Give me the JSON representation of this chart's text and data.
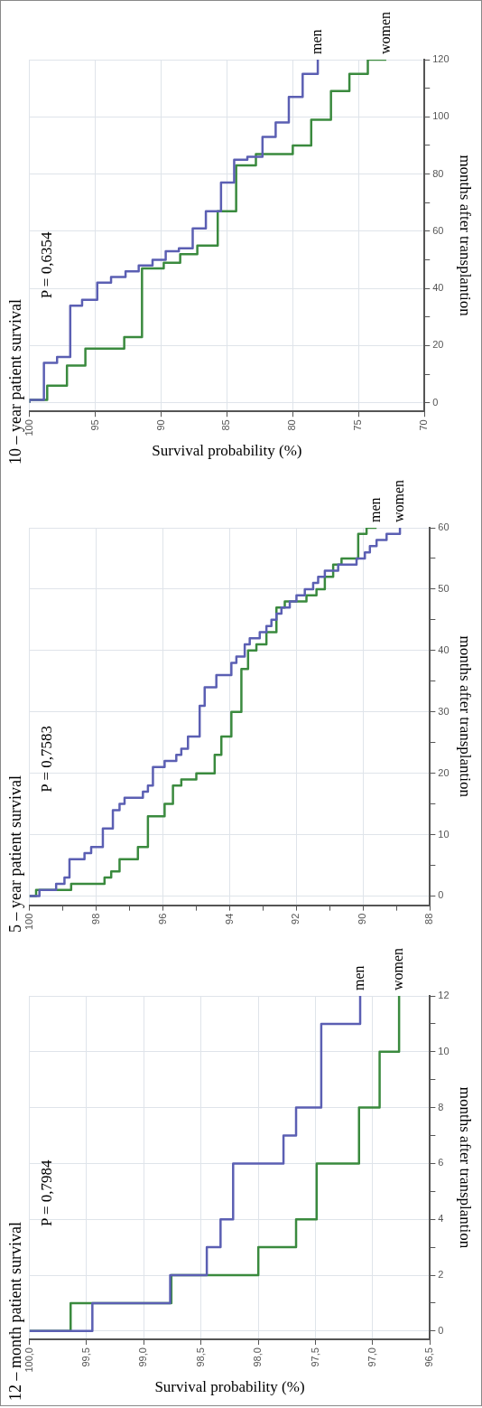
{
  "chart_data": [
    {
      "type": "step",
      "title": "12 – month patient survival",
      "ylabel": "months after transplantion",
      "xlabel": "Survival probability (%)",
      "annotations": [
        "P = 0,7984"
      ],
      "ylim": [
        -0.3,
        12
      ],
      "xlim": [
        100,
        96.5
      ],
      "yticks": [
        0,
        {
          "value": 1,
          "label": null
        },
        2,
        {
          "value": 3,
          "label": null
        },
        4,
        {
          "value": 5,
          "label": null
        },
        6,
        {
          "value": 7,
          "label": null
        },
        8,
        {
          "value": 9,
          "label": null
        },
        10,
        {
          "value": 11,
          "label": null
        },
        12
      ],
      "xticks": [
        {
          "value": 100,
          "label": "100,0"
        },
        {
          "value": 99.5,
          "label": "99,5"
        },
        {
          "value": 99,
          "label": "99,0"
        },
        {
          "value": 98.5,
          "label": "98,5"
        },
        {
          "value": 98,
          "label": "98,0"
        },
        {
          "value": 97.5,
          "label": "97,5"
        },
        {
          "value": 97,
          "label": "97,0"
        },
        {
          "value": 96.5,
          "label": "96,5"
        }
      ],
      "grid": true,
      "series": [
        {
          "name": "men",
          "color": "#5b5fb3",
          "values": [
            0,
            0,
            1,
            2,
            3,
            4,
            6,
            7,
            8,
            11,
            12
          ],
          "x": [
            100,
            99.45,
            98.77,
            98.45,
            98.33,
            98.22,
            97.78,
            97.67,
            97.45,
            97.11,
            97.11
          ]
        },
        {
          "name": "women",
          "color": "#3a8a3e",
          "values": [
            0,
            0,
            1,
            2,
            3,
            4,
            6,
            8,
            10,
            12
          ],
          "x": [
            100,
            99.64,
            98.76,
            98.0,
            97.67,
            97.49,
            97.12,
            96.94,
            96.77,
            96.77
          ]
        }
      ]
    },
    {
      "type": "step",
      "title": "5 – year patient survival",
      "ylabel": "months after transplantion",
      "annotations": [
        "P = 0,7583"
      ],
      "ylim": [
        -1.5,
        60
      ],
      "xlim": [
        100,
        88
      ],
      "yticks": [
        0,
        {
          "value": 5,
          "label": null
        },
        10,
        {
          "value": 15,
          "label": null
        },
        20,
        {
          "value": 25,
          "label": null
        },
        30,
        {
          "value": 35,
          "label": null
        },
        40,
        {
          "value": 45,
          "label": null
        },
        50,
        {
          "value": 55,
          "label": null
        },
        60
      ],
      "xticks": [
        100,
        {
          "value": 99,
          "label": null
        },
        98,
        {
          "value": 97,
          "label": null
        },
        96,
        {
          "value": 95,
          "label": null
        },
        94,
        {
          "value": 93,
          "label": null
        },
        92,
        {
          "value": 91,
          "label": null
        },
        90,
        {
          "value": 89,
          "label": null
        },
        88
      ],
      "grid": true,
      "series": [
        {
          "name": "women",
          "color": "#5b5fb3",
          "values": [
            0,
            0,
            1,
            2,
            3,
            6,
            7,
            8,
            11,
            14,
            15,
            16,
            17,
            18,
            21,
            22,
            23,
            24,
            26,
            31,
            34,
            36,
            38,
            39,
            41,
            42,
            43,
            44,
            45,
            46,
            47,
            48,
            49,
            50,
            51,
            52,
            53,
            54,
            55,
            56,
            57,
            58,
            59,
            60
          ],
          "x": [
            100,
            99.7,
            99.2,
            98.95,
            98.8,
            98.35,
            98.15,
            97.8,
            97.5,
            97.3,
            97.15,
            96.6,
            96.45,
            96.3,
            95.95,
            95.6,
            95.45,
            95.25,
            94.9,
            94.75,
            94.4,
            93.95,
            93.8,
            93.55,
            93.4,
            93.1,
            92.9,
            92.75,
            92.6,
            92.45,
            92.2,
            92.0,
            91.75,
            91.5,
            91.35,
            91.15,
            90.75,
            90.2,
            89.95,
            89.8,
            89.6,
            89.3,
            88.9,
            88.9
          ]
        },
        {
          "name": "men",
          "color": "#3a8a3e",
          "values": [
            0,
            0,
            1,
            2,
            3,
            4,
            6,
            8,
            13,
            15,
            18,
            19,
            20,
            23,
            26,
            30,
            37,
            40,
            41,
            43,
            47,
            48,
            49,
            50,
            52,
            54,
            55,
            59,
            60,
            60
          ],
          "x": [
            100,
            99.8,
            98.75,
            97.75,
            97.55,
            97.3,
            96.75,
            96.45,
            95.95,
            95.7,
            95.45,
            95.0,
            94.45,
            94.25,
            93.95,
            93.65,
            93.45,
            93.2,
            92.9,
            92.6,
            92.35,
            91.7,
            91.4,
            91.15,
            90.9,
            90.65,
            90.15,
            89.9,
            89.9,
            89.6
          ]
        }
      ]
    },
    {
      "type": "step",
      "title": "10 – year patient survival",
      "ylabel": "months after transplantion",
      "xlabel": "Survival probability (%)",
      "annotations": [
        "P = 0,6354"
      ],
      "ylim": [
        -3,
        120
      ],
      "xlim": [
        100,
        70
      ],
      "yticks": [
        0,
        {
          "value": 10,
          "label": null
        },
        20,
        {
          "value": 30,
          "label": null
        },
        40,
        {
          "value": 50,
          "label": null
        },
        60,
        {
          "value": 70,
          "label": null
        },
        80,
        {
          "value": 90,
          "label": null
        },
        100,
        {
          "value": 110,
          "label": null
        },
        120
      ],
      "xticks": [
        100,
        95,
        90,
        85,
        80,
        75,
        70
      ],
      "grid": true,
      "series": [
        {
          "name": "men",
          "color": "#5b5fb3",
          "values": [
            0,
            1,
            14,
            16,
            34,
            36,
            42,
            44,
            46,
            48,
            50,
            53,
            54,
            61,
            67,
            77,
            85,
            86,
            93,
            98,
            107,
            115,
            120
          ],
          "x": [
            100,
            98.9,
            97.9,
            96.9,
            96.0,
            94.85,
            93.8,
            92.7,
            91.7,
            90.65,
            89.65,
            88.65,
            87.6,
            86.6,
            85.45,
            84.45,
            83.45,
            82.3,
            81.3,
            80.3,
            79.25,
            78.1,
            78.1
          ]
        },
        {
          "name": "women",
          "color": "#3a8a3e",
          "values": [
            0,
            1,
            6,
            13,
            19,
            23,
            47,
            49,
            52,
            55,
            67,
            83,
            87,
            90,
            99,
            109,
            115,
            120
          ],
          "x": [
            100,
            98.65,
            97.15,
            95.75,
            92.8,
            91.45,
            89.8,
            88.55,
            87.25,
            85.7,
            84.3,
            82.8,
            80.0,
            78.6,
            77.1,
            75.7,
            74.3,
            72.9
          ]
        }
      ]
    }
  ]
}
